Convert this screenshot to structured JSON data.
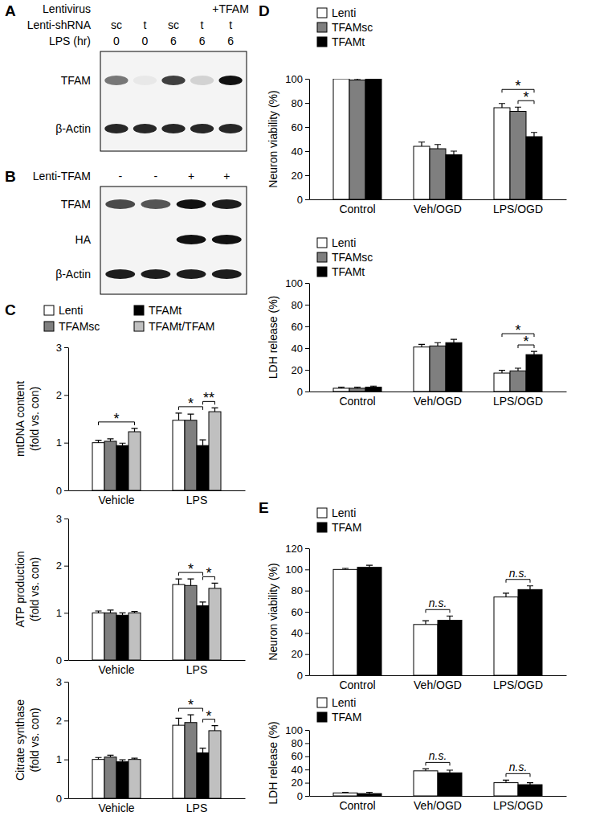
{
  "panel_labels": [
    "A",
    "B",
    "C",
    "D",
    "E"
  ],
  "blots": [
    {
      "header": [
        {
          "label": "Lentivirus",
          "values": [
            null,
            null,
            null,
            null,
            "+TFAM"
          ]
        },
        {
          "label": "Lenti-shRNA",
          "values": [
            "sc",
            "t",
            "sc",
            "t",
            "t"
          ]
        },
        {
          "label": "LPS (hr)",
          "values": [
            0,
            0,
            6,
            6,
            6
          ]
        }
      ],
      "rows": [
        {
          "label": "TFAM",
          "bands": [
            0.55,
            0.05,
            0.8,
            0.15,
            1.0
          ]
        },
        {
          "label": "β-Actin",
          "bands": [
            0.9,
            0.9,
            0.9,
            0.9,
            0.9
          ]
        }
      ]
    },
    {
      "header": [
        {
          "label": "Lenti-TFAM",
          "values": [
            "-",
            "-",
            "+",
            "+"
          ]
        }
      ],
      "rows": [
        {
          "label": "TFAM",
          "bands": [
            0.75,
            0.7,
            1.0,
            0.95
          ]
        },
        {
          "label": "HA",
          "bands": [
            0.0,
            0.0,
            1.0,
            1.0
          ]
        },
        {
          "label": "β-Actin",
          "bands": [
            0.95,
            0.95,
            0.95,
            0.95
          ]
        }
      ]
    }
  ],
  "chart_data": [
    {
      "type": "bar",
      "categories": [
        "Vehicle",
        "LPS"
      ],
      "ylabel": [
        "mtDNA content",
        "(fold vs. con)"
      ],
      "ylim": [
        0,
        3
      ],
      "yticks": [
        0,
        1,
        2,
        3
      ],
      "legend": "top",
      "series": [
        {
          "name": "Lenti",
          "color": "#ffffff",
          "values": [
            1.0,
            1.47
          ],
          "errors": [
            0.05,
            0.15
          ]
        },
        {
          "name": "TFAMsc",
          "color": "#7f7f7f",
          "values": [
            1.03,
            1.47
          ],
          "errors": [
            0.05,
            0.13
          ]
        },
        {
          "name": "TFAMt",
          "color": "#000000",
          "values": [
            0.94,
            0.94
          ],
          "errors": [
            0.05,
            0.12
          ]
        },
        {
          "name": "TFAMt/TFAM",
          "color": "#c0c0c0",
          "values": [
            1.23,
            1.65
          ],
          "errors": [
            0.07,
            0.08
          ]
        }
      ],
      "annotations": [
        {
          "text": "*",
          "category": 0,
          "from": 0,
          "to": 3
        },
        {
          "text": "*",
          "category": 1,
          "from": 0,
          "to": 2
        },
        {
          "text": "**",
          "category": 1,
          "from": 2,
          "to": 3
        }
      ]
    },
    {
      "type": "bar",
      "categories": [
        "Vehicle",
        "LPS"
      ],
      "ylabel": [
        "ATP production",
        "(fold vs. con)"
      ],
      "ylim": [
        0,
        3
      ],
      "yticks": [
        0,
        1,
        2,
        3
      ],
      "series": [
        {
          "color": "#ffffff",
          "values": [
            1.0,
            1.6
          ],
          "errors": [
            0.04,
            0.12
          ]
        },
        {
          "color": "#7f7f7f",
          "values": [
            1.0,
            1.58
          ],
          "errors": [
            0.06,
            0.14
          ]
        },
        {
          "color": "#000000",
          "values": [
            0.95,
            1.15
          ],
          "errors": [
            0.05,
            0.08
          ]
        },
        {
          "color": "#c0c0c0",
          "values": [
            1.0,
            1.52
          ],
          "errors": [
            0.03,
            0.11
          ]
        }
      ],
      "annotations": [
        {
          "text": "*",
          "category": 1,
          "from": 0,
          "to": 2
        },
        {
          "text": "*",
          "category": 1,
          "from": 2,
          "to": 3
        }
      ]
    },
    {
      "type": "bar",
      "categories": [
        "Vehicle",
        "LPS"
      ],
      "ylabel": [
        "Citrate synthase",
        "(fold vs. con)"
      ],
      "ylim": [
        0,
        3
      ],
      "yticks": [
        0,
        1,
        2,
        3
      ],
      "series": [
        {
          "color": "#ffffff",
          "values": [
            1.0,
            1.88
          ],
          "errors": [
            0.05,
            0.18
          ]
        },
        {
          "color": "#7f7f7f",
          "values": [
            1.06,
            1.95
          ],
          "errors": [
            0.05,
            0.2
          ]
        },
        {
          "color": "#000000",
          "values": [
            0.94,
            1.17
          ],
          "errors": [
            0.05,
            0.12
          ]
        },
        {
          "color": "#c0c0c0",
          "values": [
            1.0,
            1.74
          ],
          "errors": [
            0.03,
            0.13
          ]
        }
      ],
      "annotations": [
        {
          "text": "*",
          "category": 1,
          "from": 0,
          "to": 2
        },
        {
          "text": "*",
          "category": 1,
          "from": 2,
          "to": 3
        }
      ]
    },
    {
      "type": "bar",
      "categories": [
        "Control",
        "Veh/OGD",
        "LPS/OGD"
      ],
      "ylabel": "Neuron viability (%)",
      "ylim": [
        0,
        100
      ],
      "yticks": [
        0,
        20,
        40,
        60,
        80,
        100
      ],
      "legend": "top-left",
      "series": [
        {
          "name": "Lenti",
          "color": "#ffffff",
          "values": [
            100,
            44,
            76
          ],
          "errors": [
            1,
            3.5,
            3.5
          ]
        },
        {
          "name": "TFAMsc",
          "color": "#7f7f7f",
          "values": [
            99,
            42,
            73
          ],
          "errors": [
            1,
            3.5,
            3.5
          ]
        },
        {
          "name": "TFAMt",
          "color": "#000000",
          "values": [
            100,
            37,
            52
          ],
          "errors": [
            1.5,
            3,
            3.5
          ]
        }
      ],
      "annotations": [
        {
          "text": "*",
          "category": 2,
          "from": 0,
          "to": 2
        },
        {
          "text": "*",
          "category": 2,
          "from": 1,
          "to": 2
        }
      ]
    },
    {
      "type": "bar",
      "categories": [
        "Control",
        "Veh/OGD",
        "LPS/OGD"
      ],
      "ylabel": "LDH release (%)",
      "ylim": [
        0,
        100
      ],
      "yticks": [
        0,
        20,
        40,
        60,
        80,
        100
      ],
      "legend": "top-left",
      "series": [
        {
          "name": "Lenti",
          "color": "#ffffff",
          "values": [
            3,
            41,
            17
          ],
          "errors": [
            1,
            2.5,
            2.5
          ]
        },
        {
          "name": "TFAMsc",
          "color": "#7f7f7f",
          "values": [
            3,
            42,
            19
          ],
          "errors": [
            1,
            3,
            2.5
          ]
        },
        {
          "name": "TFAMt",
          "color": "#000000",
          "values": [
            4,
            45,
            34
          ],
          "errors": [
            1,
            3,
            3
          ]
        }
      ],
      "annotations": [
        {
          "text": "*",
          "category": 2,
          "from": 0,
          "to": 2
        },
        {
          "text": "*",
          "category": 2,
          "from": 1,
          "to": 2
        }
      ]
    },
    {
      "type": "bar",
      "categories": [
        "Control",
        "Veh/OGD",
        "LPS/OGD"
      ],
      "ylabel": "Neuron viability (%)",
      "ylim": [
        0,
        120
      ],
      "yticks": [
        0,
        20,
        40,
        60,
        80,
        100,
        120
      ],
      "legend": "top-left",
      "series": [
        {
          "name": "Lenti",
          "color": "#ffffff",
          "values": [
            100,
            48,
            74
          ],
          "errors": [
            1,
            3.5,
            3.5
          ]
        },
        {
          "name": "TFAM",
          "color": "#000000",
          "values": [
            102,
            52,
            81
          ],
          "errors": [
            2,
            4,
            3.5
          ]
        }
      ],
      "annotations": [
        {
          "text": "n.s.",
          "category": 1,
          "from": 0,
          "to": 1
        },
        {
          "text": "n.s.",
          "category": 2,
          "from": 0,
          "to": 1
        }
      ]
    },
    {
      "type": "bar",
      "categories": [
        "Control",
        "Veh/OGD",
        "LPS/OGD"
      ],
      "ylabel": "LDH release (%)",
      "ylim": [
        0,
        100
      ],
      "yticks": [
        0,
        20,
        40,
        60,
        80,
        100
      ],
      "legend": "top-left",
      "series": [
        {
          "name": "Lenti",
          "color": "#ffffff",
          "values": [
            4.5,
            38,
            20
          ],
          "errors": [
            1,
            3,
            4
          ]
        },
        {
          "name": "TFAM",
          "color": "#000000",
          "values": [
            3.5,
            35,
            17
          ],
          "errors": [
            2,
            4,
            3
          ]
        }
      ],
      "annotations": [
        {
          "text": "n.s.",
          "category": 1,
          "from": 0,
          "to": 1
        },
        {
          "text": "n.s.",
          "category": 2,
          "from": 0,
          "to": 1
        }
      ]
    }
  ]
}
